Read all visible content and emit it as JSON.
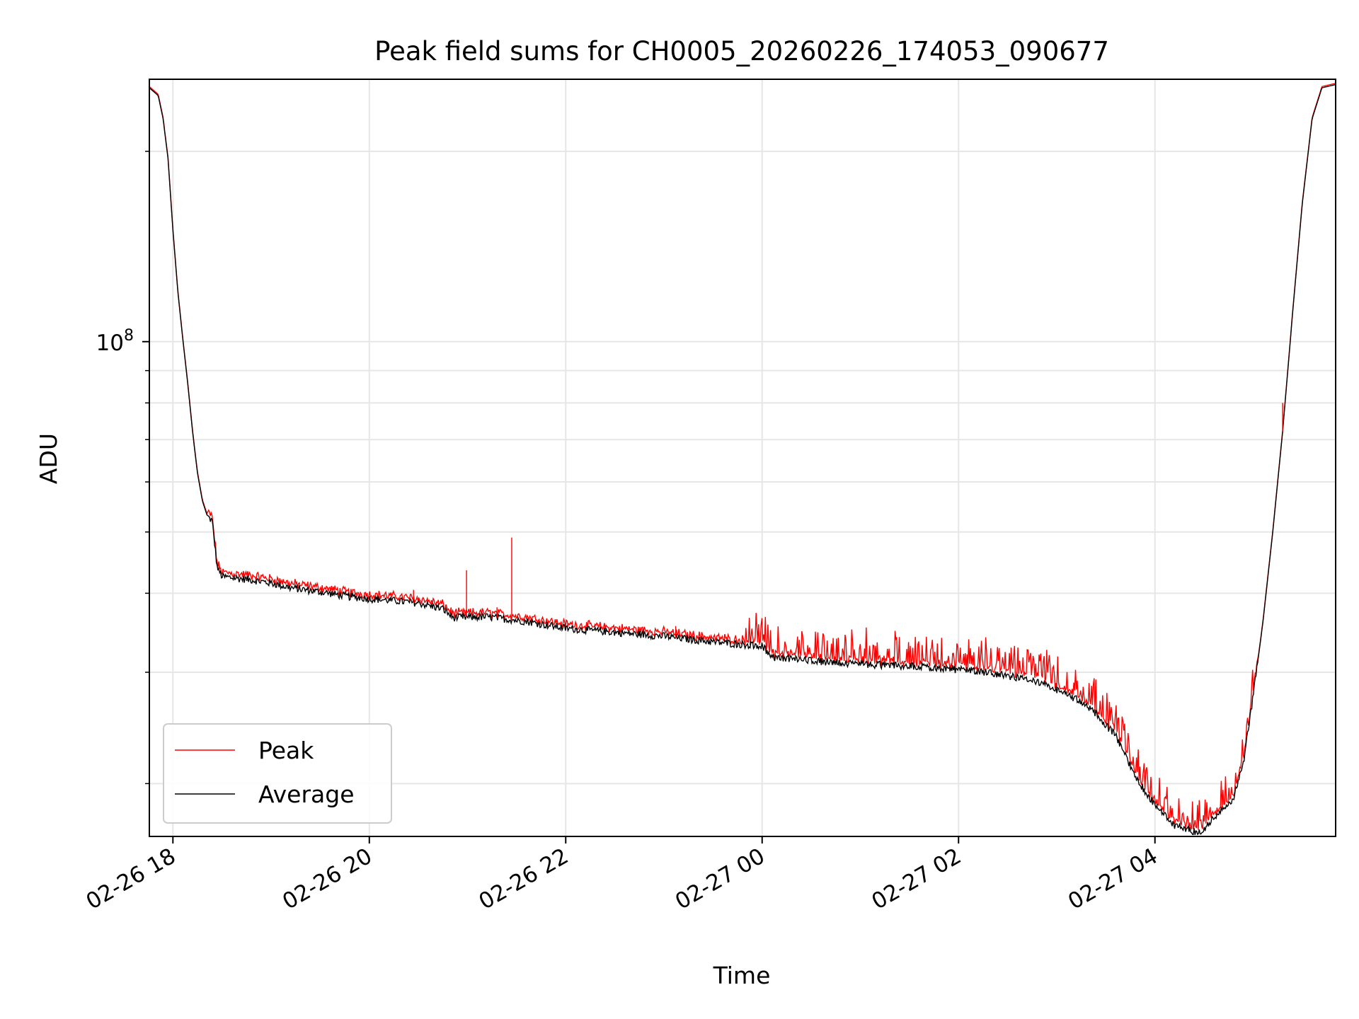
{
  "chart_data": {
    "type": "line",
    "title": "Peak field sums for CH0005_20260226_174053_090677",
    "xlabel": "Time",
    "ylabel": "ADU",
    "y_scale": "log",
    "y_major_tick": {
      "value": 100000000,
      "label_base": "10",
      "label_exp": "8"
    },
    "ylim": [
      16500000,
      260000000
    ],
    "xlim_hours": [
      -0.24,
      11.84
    ],
    "x_reference": "2026-02-26 18:00",
    "x_ticks": [
      {
        "hour": 0,
        "label": "02-26 18"
      },
      {
        "hour": 2,
        "label": "02-26 20"
      },
      {
        "hour": 4,
        "label": "02-26 22"
      },
      {
        "hour": 6,
        "label": "02-27 00"
      },
      {
        "hour": 8,
        "label": "02-27 02"
      },
      {
        "hour": 10,
        "label": "02-27 04"
      }
    ],
    "y_minor_ticks": [
      20000000,
      30000000,
      40000000,
      50000000,
      60000000,
      70000000,
      80000000,
      90000000,
      200000000
    ],
    "grid": true,
    "legend": {
      "position": "lower-left",
      "entries": [
        "Peak",
        "Average"
      ]
    },
    "series": [
      {
        "name": "Average",
        "color": "#000000",
        "points": [
          [
            -0.24,
            252000000
          ],
          [
            -0.15,
            245000000
          ],
          [
            -0.1,
            225000000
          ],
          [
            -0.05,
            195000000
          ],
          [
            0.0,
            150000000
          ],
          [
            0.05,
            120000000
          ],
          [
            0.1,
            101000000
          ],
          [
            0.15,
            86000000
          ],
          [
            0.2,
            72000000
          ],
          [
            0.25,
            62000000
          ],
          [
            0.3,
            56000000
          ],
          [
            0.35,
            53000000
          ],
          [
            0.4,
            52000000
          ],
          [
            0.45,
            44000000
          ],
          [
            0.5,
            42500000
          ],
          [
            0.8,
            42000000
          ],
          [
            1.0,
            41500000
          ],
          [
            1.2,
            40800000
          ],
          [
            1.5,
            40200000
          ],
          [
            1.8,
            39500000
          ],
          [
            2.0,
            39200000
          ],
          [
            2.2,
            39000000
          ],
          [
            2.5,
            38600000
          ],
          [
            2.75,
            37800000
          ],
          [
            2.85,
            36600000
          ],
          [
            3.2,
            36700000
          ],
          [
            3.6,
            36100000
          ],
          [
            4.0,
            35200000
          ],
          [
            4.5,
            34700000
          ],
          [
            5.0,
            34200000
          ],
          [
            5.5,
            33500000
          ],
          [
            6.0,
            33000000
          ],
          [
            6.1,
            31700000
          ],
          [
            6.5,
            31300000
          ],
          [
            7.0,
            30900000
          ],
          [
            7.5,
            30700000
          ],
          [
            8.0,
            30300000
          ],
          [
            8.3,
            30000000
          ],
          [
            8.6,
            29400000
          ],
          [
            8.9,
            28600000
          ],
          [
            9.2,
            27200000
          ],
          [
            9.4,
            25800000
          ],
          [
            9.6,
            23800000
          ],
          [
            9.8,
            20500000
          ],
          [
            10.0,
            18500000
          ],
          [
            10.2,
            17200000
          ],
          [
            10.4,
            16800000
          ],
          [
            10.5,
            16900000
          ],
          [
            10.6,
            17700000
          ],
          [
            10.8,
            19000000
          ],
          [
            10.9,
            21500000
          ],
          [
            11.0,
            27500000
          ],
          [
            11.1,
            36000000
          ],
          [
            11.2,
            50000000
          ],
          [
            11.3,
            72000000
          ],
          [
            11.4,
            110000000
          ],
          [
            11.5,
            165000000
          ],
          [
            11.6,
            225000000
          ],
          [
            11.7,
            252000000
          ],
          [
            11.84,
            255000000
          ]
        ]
      },
      {
        "name": "Peak",
        "color": "#ff0000",
        "spikes": [
          [
            0.47,
            44500000
          ],
          [
            2.45,
            40500000
          ],
          [
            2.99,
            43500000
          ],
          [
            3.3,
            38000000
          ],
          [
            3.45,
            49000000
          ],
          [
            5.12,
            35500000
          ],
          [
            11.3,
            80000000
          ]
        ]
      }
    ]
  }
}
